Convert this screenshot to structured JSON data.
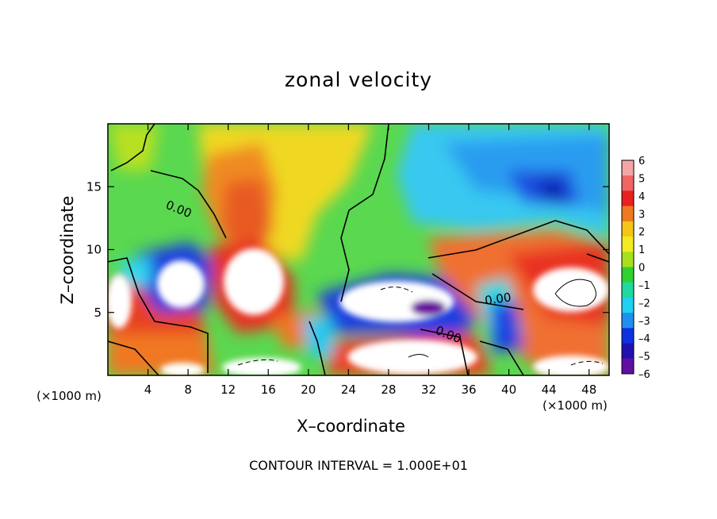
{
  "chart_data": {
    "type": "heatmap",
    "title": "zonal velocity",
    "xlabel": "X–coordinate",
    "ylabel": "Z–coordinate",
    "x_units": "(×1000 m)",
    "xlim": [
      0,
      50
    ],
    "ylim": [
      0,
      20
    ],
    "x_ticks": [
      4,
      8,
      12,
      16,
      20,
      24,
      28,
      32,
      36,
      40,
      44,
      48
    ],
    "y_ticks": [
      5,
      10,
      15
    ],
    "colorbar": {
      "min": -6,
      "max": 6,
      "ticks": [
        6,
        5,
        4,
        3,
        2,
        1,
        0,
        -1,
        -2,
        -3,
        -4,
        -5,
        -6
      ],
      "colors": [
        "#f4a6a6",
        "#f06464",
        "#e82020",
        "#f07820",
        "#f5c518",
        "#f0ec20",
        "#a8e020",
        "#30d030",
        "#20d8a0",
        "#20d0f0",
        "#2090f0",
        "#1030e0",
        "#2010b0",
        "#6010a0"
      ]
    },
    "contour_labels": [
      "0.00",
      "0.00",
      "0.00"
    ],
    "contour_interval": "CONTOUR INTERVAL = 1.000E+01"
  }
}
